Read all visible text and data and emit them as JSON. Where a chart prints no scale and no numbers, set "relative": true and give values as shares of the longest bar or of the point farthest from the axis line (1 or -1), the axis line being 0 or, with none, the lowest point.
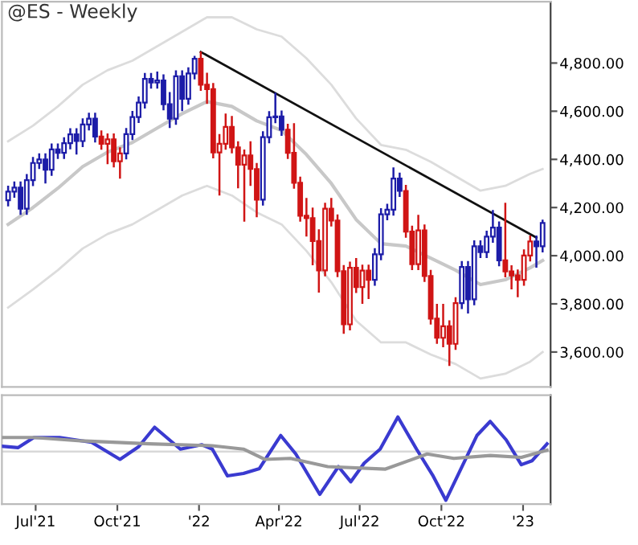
{
  "chart_data": [
    {
      "type": "candlestick",
      "title": "@ES - Weekly",
      "tick_labels": "y",
      "xlim": [
        "2021-05-24",
        "2023-02-01"
      ],
      "ylim": [
        3455,
        5055
      ],
      "yticks": [
        {
          "value": 3600,
          "label": "3,600.00"
        },
        {
          "value": 3800,
          "label": "3,800.00"
        },
        {
          "value": 4000,
          "label": "4,000.00"
        },
        {
          "value": 4200,
          "label": "4,200.00"
        },
        {
          "value": 4400,
          "label": "4,400.00"
        },
        {
          "value": 4600,
          "label": "4,600.00"
        },
        {
          "value": 4800,
          "label": "4,800.00"
        }
      ],
      "x": [
        "2021-05-31",
        "2021-06-07",
        "2021-06-14",
        "2021-06-21",
        "2021-06-28",
        "2021-07-05",
        "2021-07-12",
        "2021-07-19",
        "2021-07-26",
        "2021-08-02",
        "2021-08-09",
        "2021-08-16",
        "2021-08-23",
        "2021-08-30",
        "2021-09-06",
        "2021-09-13",
        "2021-09-20",
        "2021-09-27",
        "2021-10-04",
        "2021-10-11",
        "2021-10-18",
        "2021-10-25",
        "2021-11-01",
        "2021-11-08",
        "2021-11-15",
        "2021-11-22",
        "2021-11-29",
        "2021-12-06",
        "2021-12-13",
        "2021-12-20",
        "2021-12-27",
        "2022-01-03",
        "2022-01-10",
        "2022-01-17",
        "2022-01-24",
        "2022-01-31",
        "2022-02-07",
        "2022-02-14",
        "2022-02-21",
        "2022-02-28",
        "2022-03-07",
        "2022-03-14",
        "2022-03-21",
        "2022-03-28",
        "2022-04-04",
        "2022-04-11",
        "2022-04-18",
        "2022-04-25",
        "2022-05-02",
        "2022-05-09",
        "2022-05-16",
        "2022-05-23",
        "2022-05-30",
        "2022-06-06",
        "2022-06-13",
        "2022-06-20",
        "2022-06-27",
        "2022-07-04",
        "2022-07-11",
        "2022-07-18",
        "2022-07-25",
        "2022-08-01",
        "2022-08-08",
        "2022-08-15",
        "2022-08-22",
        "2022-08-29",
        "2022-09-05",
        "2022-09-12",
        "2022-09-19",
        "2022-09-26",
        "2022-10-03",
        "2022-10-10",
        "2022-10-17",
        "2022-10-24",
        "2022-10-31",
        "2022-11-07",
        "2022-11-14",
        "2022-11-21",
        "2022-11-28",
        "2022-12-05",
        "2022-12-12",
        "2022-12-19",
        "2022-12-26",
        "2023-01-02",
        "2023-01-09",
        "2023-01-16",
        "2023-01-23"
      ],
      "ohlc": [
        [
          4230,
          4291,
          4205,
          4266
        ],
        [
          4266,
          4308,
          4241,
          4283
        ],
        [
          4283,
          4308,
          4170,
          4195
        ],
        [
          4195,
          4339,
          4170,
          4314
        ],
        [
          4314,
          4410,
          4289,
          4385
        ],
        [
          4385,
          4425,
          4360,
          4400
        ],
        [
          4400,
          4425,
          4300,
          4357
        ],
        [
          4357,
          4466,
          4332,
          4441
        ],
        [
          4441,
          4466,
          4402,
          4427
        ],
        [
          4427,
          4492,
          4402,
          4467
        ],
        [
          4467,
          4529,
          4442,
          4504
        ],
        [
          4504,
          4529,
          4420,
          4476
        ],
        [
          4476,
          4570,
          4451,
          4545
        ],
        [
          4545,
          4594,
          4520,
          4569
        ],
        [
          4569,
          4594,
          4470,
          4495
        ],
        [
          4495,
          4520,
          4440,
          4465
        ],
        [
          4465,
          4508,
          4380,
          4483
        ],
        [
          4483,
          4508,
          4367,
          4392
        ],
        [
          4392,
          4450,
          4320,
          4425
        ],
        [
          4425,
          4530,
          4400,
          4505
        ],
        [
          4505,
          4601,
          4480,
          4576
        ],
        [
          4576,
          4661,
          4551,
          4636
        ],
        [
          4636,
          4759,
          4611,
          4734
        ],
        [
          4734,
          4759,
          4694,
          4719
        ],
        [
          4719,
          4765,
          4694,
          4728
        ],
        [
          4728,
          4753,
          4604,
          4629
        ],
        [
          4629,
          4680,
          4530,
          4569
        ],
        [
          4569,
          4770,
          4544,
          4745
        ],
        [
          4745,
          4770,
          4600,
          4652
        ],
        [
          4652,
          4782,
          4627,
          4757
        ],
        [
          4757,
          4830,
          4732,
          4818
        ],
        [
          4818,
          4848,
          4685,
          4710
        ],
        [
          4710,
          4760,
          4630,
          4692
        ],
        [
          4692,
          4717,
          4404,
          4429
        ],
        [
          4429,
          4505,
          4250,
          4465
        ],
        [
          4465,
          4590,
          4440,
          4535
        ],
        [
          4535,
          4580,
          4425,
          4450
        ],
        [
          4450,
          4475,
          4280,
          4378
        ],
        [
          4378,
          4441,
          4141,
          4416
        ],
        [
          4416,
          4475,
          4290,
          4360
        ],
        [
          4360,
          4385,
          4160,
          4233
        ],
        [
          4233,
          4517,
          4208,
          4492
        ],
        [
          4492,
          4600,
          4467,
          4575
        ],
        [
          4575,
          4677,
          4550,
          4578
        ],
        [
          4578,
          4603,
          4498,
          4523
        ],
        [
          4523,
          4548,
          4402,
          4427
        ],
        [
          4427,
          4550,
          4278,
          4303
        ],
        [
          4303,
          4328,
          4141,
          4166
        ],
        [
          4166,
          4240,
          4080,
          4156
        ],
        [
          4156,
          4200,
          3960,
          4061
        ],
        [
          4061,
          4110,
          3847,
          3939
        ],
        [
          3939,
          4220,
          3914,
          4195
        ],
        [
          4195,
          4240,
          4121,
          4146
        ],
        [
          4146,
          4171,
          3911,
          3936
        ],
        [
          3936,
          3961,
          3676,
          3715
        ],
        [
          3715,
          3975,
          3690,
          3950
        ],
        [
          3950,
          3990,
          3845,
          3870
        ],
        [
          3870,
          3963,
          3800,
          3938
        ],
        [
          3938,
          3963,
          3820,
          3900
        ],
        [
          3900,
          4031,
          3875,
          4006
        ],
        [
          4006,
          4197,
          3981,
          4172
        ],
        [
          4172,
          4216,
          4147,
          4191
        ],
        [
          4191,
          4367,
          4166,
          4320
        ],
        [
          4320,
          4345,
          4244,
          4269
        ],
        [
          4269,
          4294,
          4075,
          4100
        ],
        [
          4100,
          4125,
          3940,
          3965
        ],
        [
          3965,
          4170,
          3940,
          4105
        ],
        [
          4105,
          4130,
          3891,
          3916
        ],
        [
          3916,
          3941,
          3714,
          3739
        ],
        [
          3739,
          3800,
          3634,
          3659
        ],
        [
          3659,
          3800,
          3620,
          3707
        ],
        [
          3707,
          3732,
          3542,
          3634
        ],
        [
          3634,
          3828,
          3609,
          3803
        ],
        [
          3803,
          3978,
          3778,
          3953
        ],
        [
          3953,
          3978,
          3760,
          3819
        ],
        [
          3819,
          4064,
          3794,
          4039
        ],
        [
          4039,
          4064,
          3990,
          4015
        ],
        [
          4015,
          4104,
          3990,
          4079
        ],
        [
          4079,
          4190,
          4054,
          4117
        ],
        [
          4117,
          4142,
          3956,
          3981
        ],
        [
          3981,
          4220,
          3910,
          3935
        ],
        [
          3935,
          3960,
          3860,
          3918
        ],
        [
          3918,
          3943,
          3828,
          3900
        ],
        [
          3900,
          4026,
          3875,
          4001
        ],
        [
          4001,
          4084,
          3976,
          4059
        ],
        [
          4059,
          4084,
          3950,
          4039
        ],
        [
          4039,
          4150,
          4014,
          4136
        ]
      ],
      "colors": [
        "#1c1ca8",
        "#1c1ca8",
        "#1c1ca8",
        "#1c1ca8",
        "#1c1ca8",
        "#1c1ca8",
        "#1c1ca8",
        "#1c1ca8",
        "#1c1ca8",
        "#1c1ca8",
        "#1c1ca8",
        "#1c1ca8",
        "#1c1ca8",
        "#1c1ca8",
        "#1c1ca8",
        "#d01515",
        "#d01515",
        "#d01515",
        "#d01515",
        "#1c1ca8",
        "#1c1ca8",
        "#1c1ca8",
        "#1c1ca8",
        "#1c1ca8",
        "#1c1ca8",
        "#1c1ca8",
        "#1c1ca8",
        "#1c1ca8",
        "#1c1ca8",
        "#1c1ca8",
        "#1c1ca8",
        "#d01515",
        "#d01515",
        "#d01515",
        "#d01515",
        "#d01515",
        "#d01515",
        "#d01515",
        "#d01515",
        "#d01515",
        "#d01515",
        "#1c1ca8",
        "#1c1ca8",
        "#1c1ca8",
        "#1c1ca8",
        "#d01515",
        "#d01515",
        "#d01515",
        "#d01515",
        "#d01515",
        "#d01515",
        "#d01515",
        "#d01515",
        "#d01515",
        "#d01515",
        "#d01515",
        "#d01515",
        "#d01515",
        "#d01515",
        "#1c1ca8",
        "#1c1ca8",
        "#1c1ca8",
        "#1c1ca8",
        "#1c1ca8",
        "#d01515",
        "#d01515",
        "#d01515",
        "#d01515",
        "#d01515",
        "#d01515",
        "#d01515",
        "#d01515",
        "#d01515",
        "#1c1ca8",
        "#1c1ca8",
        "#1c1ca8",
        "#1c1ca8",
        "#1c1ca8",
        "#1c1ca8",
        "#1c1ca8",
        "#d01515",
        "#d01515",
        "#d01515",
        "#d01515",
        "#d01515",
        "#1c1ca8",
        "#1c1ca8"
      ],
      "series": [
        {
          "type": "line",
          "color": "#dcdcdc",
          "x": [
            "2021-05-31",
            "2021-06-28",
            "2021-07-26",
            "2021-08-23",
            "2021-09-20",
            "2021-10-18",
            "2021-11-15",
            "2021-12-13",
            "2022-01-10",
            "2022-02-07",
            "2022-03-07",
            "2022-04-04",
            "2022-05-02",
            "2022-05-30",
            "2022-06-27",
            "2022-07-25",
            "2022-08-22",
            "2022-09-19",
            "2022-10-17",
            "2022-11-14",
            "2022-12-12",
            "2023-01-09",
            "2023-01-23"
          ],
          "values": [
            4475,
            4540,
            4620,
            4710,
            4770,
            4810,
            4870,
            4930,
            4990,
            4990,
            4940,
            4910,
            4820,
            4710,
            4570,
            4460,
            4440,
            4390,
            4330,
            4270,
            4290,
            4340,
            4360
          ]
        },
        {
          "type": "line",
          "color": "#c8c8c8",
          "x": [
            "2021-05-31",
            "2021-06-28",
            "2021-07-26",
            "2021-08-23",
            "2021-09-20",
            "2021-10-18",
            "2021-11-15",
            "2021-12-13",
            "2022-01-10",
            "2022-02-07",
            "2022-03-07",
            "2022-04-04",
            "2022-05-02",
            "2022-05-30",
            "2022-06-27",
            "2022-07-25",
            "2022-08-22",
            "2022-09-19",
            "2022-10-17",
            "2022-11-14",
            "2022-12-12",
            "2023-01-09",
            "2023-01-23"
          ],
          "values": [
            4130,
            4200,
            4280,
            4370,
            4430,
            4470,
            4530,
            4590,
            4640,
            4620,
            4560,
            4520,
            4420,
            4300,
            4150,
            4050,
            4040,
            3990,
            3940,
            3880,
            3900,
            3950,
            3980
          ]
        },
        {
          "type": "line",
          "color": "#dcdcdc",
          "x": [
            "2021-05-31",
            "2021-06-28",
            "2021-07-26",
            "2021-08-23",
            "2021-09-20",
            "2021-10-18",
            "2021-11-15",
            "2021-12-13",
            "2022-01-10",
            "2022-02-07",
            "2022-03-07",
            "2022-04-04",
            "2022-05-02",
            "2022-05-30",
            "2022-06-27",
            "2022-07-25",
            "2022-08-22",
            "2022-09-19",
            "2022-10-17",
            "2022-11-14",
            "2022-12-12",
            "2023-01-09",
            "2023-01-23"
          ],
          "values": [
            3785,
            3860,
            3940,
            4030,
            4090,
            4130,
            4190,
            4250,
            4290,
            4250,
            4180,
            4130,
            4020,
            3890,
            3730,
            3640,
            3640,
            3590,
            3550,
            3490,
            3510,
            3560,
            3600
          ]
        },
        {
          "type": "line",
          "color": "#111111",
          "x": [
            "2022-01-03",
            "2023-01-16"
          ],
          "values": [
            4846,
            4075
          ]
        }
      ]
    },
    {
      "type": "line",
      "relative": true,
      "tick_labels": "x",
      "xlim": [
        "2021-05-24",
        "2023-02-01"
      ],
      "xticks": [
        {
          "value": "2021-07-01",
          "label": "Jul'21"
        },
        {
          "value": "2021-10-01",
          "label": "Oct'21"
        },
        {
          "value": "2022-01-01",
          "label": "'22"
        },
        {
          "value": "2022-04-01",
          "label": "Apr'22"
        },
        {
          "value": "2022-07-01",
          "label": "Jul'22"
        },
        {
          "value": "2022-10-01",
          "label": "Oct'22"
        },
        {
          "value": "2023-01-01",
          "label": "'23"
        }
      ],
      "ref_lines": [
        {
          "axis": "y",
          "value": 0,
          "color": "#d8d8d8"
        }
      ],
      "series": [
        {
          "color": "#3a3ad0",
          "x": [
            "2021-05-24",
            "2021-06-11",
            "2021-06-29",
            "2021-07-28",
            "2021-09-02",
            "2021-10-04",
            "2021-10-25",
            "2021-11-12",
            "2021-12-11",
            "2022-01-04",
            "2022-01-16",
            "2022-02-02",
            "2022-02-20",
            "2022-03-10",
            "2022-04-03",
            "2022-04-20",
            "2022-05-17",
            "2022-06-07",
            "2022-06-21",
            "2022-07-06",
            "2022-07-24",
            "2022-08-13",
            "2022-09-03",
            "2022-09-21",
            "2022-10-06",
            "2022-10-21",
            "2022-11-10",
            "2022-11-25",
            "2022-12-13",
            "2022-12-30",
            "2023-01-11",
            "2023-01-28"
          ],
          "values": [
            0.11,
            0.08,
            0.29,
            0.29,
            0.19,
            -0.16,
            0.1,
            0.5,
            0.05,
            0.14,
            0.05,
            -0.5,
            -0.45,
            -0.35,
            0.33,
            -0.05,
            -0.88,
            -0.31,
            -0.62,
            -0.24,
            0.05,
            0.71,
            0.05,
            -0.48,
            -1.0,
            -0.43,
            0.33,
            0.62,
            0.24,
            -0.27,
            -0.19,
            0.16
          ]
        },
        {
          "color": "#999999",
          "x": [
            "2021-05-24",
            "2021-06-29",
            "2021-08-21",
            "2021-11-06",
            "2022-01-16",
            "2022-02-20",
            "2022-03-16",
            "2022-04-14",
            "2022-05-26",
            "2022-07-30",
            "2022-09-15",
            "2022-10-15",
            "2022-11-25",
            "2022-12-30",
            "2023-01-28"
          ],
          "values": [
            0.29,
            0.29,
            0.22,
            0.16,
            0.12,
            0.05,
            -0.16,
            -0.14,
            -0.31,
            -0.36,
            -0.05,
            -0.14,
            -0.08,
            -0.12,
            0.03
          ]
        }
      ]
    }
  ]
}
